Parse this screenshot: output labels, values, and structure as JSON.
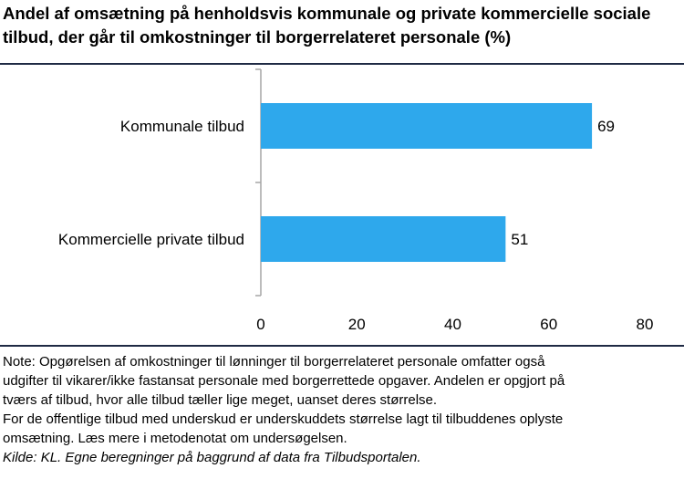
{
  "title_lines": [
    "Andel af omsætning på henholdsvis kommunale og private kommercielle sociale",
    "tilbud, der går til omkostninger til borgerrelateret personale (%)"
  ],
  "chart_data": {
    "type": "bar",
    "orientation": "horizontal",
    "categories": [
      "Kommunale tilbud",
      "Kommercielle private tilbud"
    ],
    "values": [
      69,
      51
    ],
    "data_labels": [
      "69",
      "51"
    ],
    "x_ticks": [
      "0",
      "20",
      "40",
      "60",
      "80"
    ],
    "xlim": [
      0,
      80
    ],
    "grid": false,
    "bar_color": "#2ea8ec",
    "axis_color": "#a6a6a6"
  },
  "note_lines": [
    "Note: Opgørelsen af omkostninger til lønninger til borgerrelateret personale omfatter også",
    "udgifter til vikarer/ikke fastansat personale med borgerrettede opgaver. Andelen er opgjort på",
    "tværs af tilbud, hvor alle tilbud tæller lige meget, uanset deres størrelse.",
    "For de offentlige tilbud med underskud er underskuddets størrelse lagt til tilbuddenes oplyste",
    "omsætning. Læs mere i metodenotat om undersøgelsen."
  ],
  "source": "Kilde: KL. Egne beregninger på baggrund af data fra Tilbudsportalen."
}
